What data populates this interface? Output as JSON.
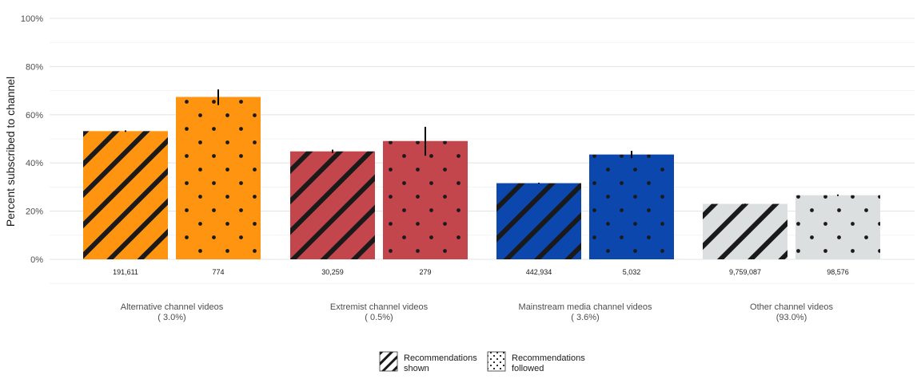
{
  "chart_data": {
    "type": "bar",
    "ylabel": "Percent subscribed to channel",
    "ylim": [
      0,
      100
    ],
    "yticks": [
      "0%",
      "20%",
      "40%",
      "60%",
      "80%",
      "100%"
    ],
    "ytick_values": [
      0,
      20,
      40,
      60,
      80,
      100
    ],
    "grid": true,
    "legend_position": "bottom",
    "categories": [
      {
        "name": "Alternative channel videos",
        "share": "( 3.0%)",
        "color": "#ff9410"
      },
      {
        "name": "Extremist channel videos",
        "share": "( 0.5%)",
        "color": "#c2464b"
      },
      {
        "name": "Mainstream media channel videos",
        "share": "( 3.6%)",
        "color": "#0c47ae"
      },
      {
        "name": "Other channel videos",
        "share": "(93.0%)",
        "color": "#dcdfdf"
      }
    ],
    "series": [
      {
        "name": "Recommendations shown",
        "legend_lines": [
          "Recommendations",
          "shown"
        ],
        "pattern": "stripe",
        "values": [
          53.2,
          44.8,
          31.6,
          23.0
        ],
        "error_low": [
          52.9,
          44.1,
          31.4,
          22.9
        ],
        "error_high": [
          53.5,
          45.5,
          31.8,
          23.1
        ],
        "counts": [
          "191,611",
          "30,259",
          "442,934",
          "9,759,087"
        ]
      },
      {
        "name": "Recommendations followed",
        "legend_lines": [
          "Recommendations",
          "followed"
        ],
        "pattern": "dots",
        "values": [
          67.4,
          49.1,
          43.5,
          26.6
        ],
        "error_low": [
          64.0,
          43.0,
          42.0,
          26.3
        ],
        "error_high": [
          70.5,
          55.0,
          45.0,
          26.9
        ],
        "counts": [
          "774",
          "279",
          "5,032",
          "98,576"
        ]
      }
    ]
  }
}
